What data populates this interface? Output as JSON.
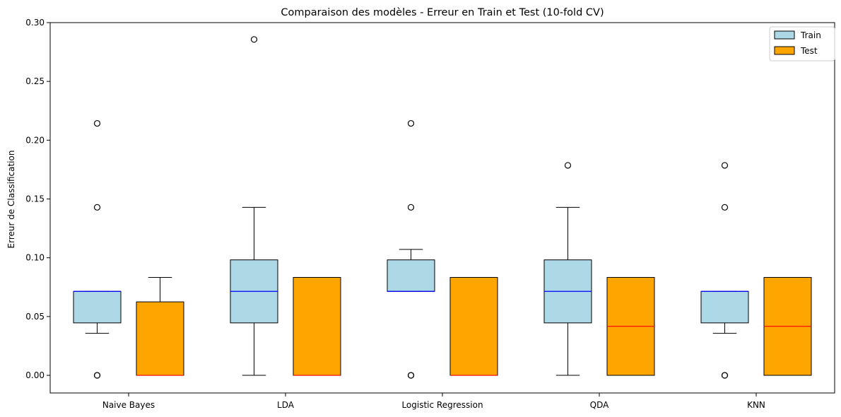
{
  "chart_data": {
    "type": "boxplot",
    "title": "Comparaison des modèles - Erreur en Train et Test (10-fold CV)",
    "xlabel": "",
    "ylabel": "Erreur de Classification",
    "ylim": [
      -0.015,
      0.3
    ],
    "yticks": [
      "0.00",
      "0.05",
      "0.10",
      "0.15",
      "0.20",
      "0.25",
      "0.30"
    ],
    "categories": [
      "Naive Bayes",
      "LDA",
      "Logistic Regression",
      "QDA",
      "KNN"
    ],
    "legend": {
      "position": "top-right",
      "entries": [
        "Train",
        "Test"
      ]
    },
    "colors": {
      "train_fill": "#add8e6",
      "test_fill": "#ffa500",
      "train_median": "#0000ff",
      "test_median": "#ff0000",
      "edge": "#000000"
    },
    "series": [
      {
        "name": "Train",
        "boxes": [
          {
            "whislo": 0.0357,
            "q1": 0.0446,
            "med": 0.0714,
            "q3": 0.0714,
            "whishi": 0.0714,
            "fliers": [
              0.0,
              0.0,
              0.1429,
              0.2143
            ]
          },
          {
            "whislo": 0.0,
            "q1": 0.0446,
            "med": 0.0714,
            "q3": 0.0982,
            "whishi": 0.1429,
            "fliers": [
              0.2857
            ]
          },
          {
            "whislo": 0.0714,
            "q1": 0.0714,
            "med": 0.0714,
            "q3": 0.0982,
            "whishi": 0.1071,
            "fliers": [
              0.0,
              0.0,
              0.1429,
              0.2143
            ]
          },
          {
            "whislo": 0.0,
            "q1": 0.0446,
            "med": 0.0714,
            "q3": 0.0982,
            "whishi": 0.1429,
            "fliers": [
              0.1786
            ]
          },
          {
            "whislo": 0.0357,
            "q1": 0.0446,
            "med": 0.0714,
            "q3": 0.0714,
            "whishi": 0.0714,
            "fliers": [
              0.0,
              0.0,
              0.1429,
              0.1786
            ]
          }
        ]
      },
      {
        "name": "Test",
        "boxes": [
          {
            "whislo": 0.0,
            "q1": 0.0,
            "med": 0.0,
            "q3": 0.0625,
            "whishi": 0.0833,
            "fliers": []
          },
          {
            "whislo": 0.0,
            "q1": 0.0,
            "med": 0.0,
            "q3": 0.0833,
            "whishi": 0.0833,
            "fliers": []
          },
          {
            "whislo": 0.0,
            "q1": 0.0,
            "med": 0.0,
            "q3": 0.0833,
            "whishi": 0.0833,
            "fliers": []
          },
          {
            "whislo": 0.0,
            "q1": 0.0,
            "med": 0.0417,
            "q3": 0.0833,
            "whishi": 0.0833,
            "fliers": []
          },
          {
            "whislo": 0.0,
            "q1": 0.0,
            "med": 0.0417,
            "q3": 0.0833,
            "whishi": 0.0833,
            "fliers": []
          }
        ]
      }
    ]
  }
}
